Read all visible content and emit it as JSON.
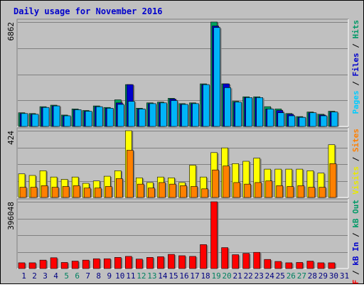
{
  "chart_data": {
    "type": "bar",
    "title": "Daily usage for November 2016",
    "categories": [
      "1",
      "2",
      "3",
      "4",
      "5",
      "6",
      "7",
      "8",
      "9",
      "10",
      "11",
      "12",
      "13",
      "14",
      "15",
      "16",
      "17",
      "18",
      "19",
      "20",
      "21",
      "22",
      "23",
      "24",
      "25",
      "26",
      "27",
      "28",
      "29",
      "30",
      "31"
    ],
    "weekend_days": [
      "5",
      "6",
      "12",
      "13",
      "19",
      "20",
      "26",
      "27"
    ],
    "panels": [
      {
        "id": "top",
        "ymax_label": "6862",
        "ymax": 6862,
        "legend": [
          {
            "text": "Pages",
            "color": "#00ccff"
          },
          {
            "text": " / ",
            "color": "#000000"
          },
          {
            "text": "Files",
            "color": "#0000cc"
          },
          {
            "text": " / ",
            "color": "#000000"
          },
          {
            "text": "Hits",
            "color": "#009966"
          }
        ],
        "series": [
          {
            "name": "Hits",
            "color": "#00a060",
            "values": [
              900,
              850,
              1300,
              1400,
              750,
              1150,
              1050,
              1350,
              1250,
              1750,
              2750,
              1200,
              1550,
              1600,
              1850,
              1500,
              1550,
              2800,
              6862,
              2800,
              1650,
              1950,
              1950,
              1300,
              1150,
              850,
              650,
              950,
              800,
              1000,
              0
            ]
          },
          {
            "name": "Files",
            "color": "#0000cc",
            "values": [
              850,
              800,
              1250,
              1350,
              700,
              1100,
              1000,
              1300,
              1200,
              1550,
              2750,
              1150,
              1500,
              1550,
              1800,
              1450,
              1500,
              2750,
              6600,
              2800,
              1600,
              1900,
              1900,
              1150,
              1050,
              800,
              600,
              900,
              750,
              950,
              0
            ]
          },
          {
            "name": "Pages",
            "color": "#00b4f8",
            "values": [
              850,
              800,
              1250,
              1350,
              700,
              1100,
              1000,
              1300,
              1200,
              1450,
              1650,
              1150,
              1500,
              1550,
              1700,
              1450,
              1500,
              2750,
              6500,
              2550,
              1600,
              1900,
              1900,
              1150,
              900,
              700,
              600,
              900,
              700,
              950,
              0
            ]
          }
        ]
      },
      {
        "id": "middle",
        "ymax_label": "424",
        "ymax": 424,
        "legend": [
          {
            "text": "Visits",
            "color": "#e8e800"
          },
          {
            "text": " / ",
            "color": "#000000"
          },
          {
            "text": "Sites",
            "color": "#ff8000"
          }
        ],
        "series": [
          {
            "name": "Visits",
            "color": "#ffff00",
            "values": [
              150,
              140,
              170,
              130,
              115,
              130,
              90,
              105,
              135,
              170,
              424,
              125,
              95,
              130,
              125,
              95,
              205,
              130,
              285,
              315,
              215,
              230,
              250,
              180,
              180,
              180,
              180,
              170,
              155,
              335,
              0
            ]
          },
          {
            "name": "Sites",
            "color": "#ff8000",
            "values": [
              65,
              65,
              75,
              65,
              70,
              75,
              60,
              60,
              70,
              120,
              300,
              85,
              60,
              95,
              85,
              75,
              70,
              55,
              175,
              200,
              95,
              85,
              95,
              105,
              75,
              70,
              75,
              65,
              65,
              215,
              0
            ]
          }
        ]
      },
      {
        "id": "bottom",
        "ymax_label": "396048",
        "ymax": 396048,
        "legend": [
          {
            "text": "kB F",
            "color": "#ff0000"
          },
          {
            "text": " / ",
            "color": "#000000"
          },
          {
            "text": "kB In",
            "color": "#0000cc"
          },
          {
            "text": " / ",
            "color": "#000000"
          },
          {
            "text": "kB Out",
            "color": "#009966"
          }
        ],
        "series": [
          {
            "name": "kB F",
            "color": "#ff0000",
            "values": [
              34000,
              34000,
              50000,
              64000,
              36000,
              44000,
              50000,
              58000,
              58000,
              66000,
              72000,
              56000,
              66000,
              70000,
              84000,
              76000,
              72000,
              142000,
              396048,
              124000,
              82000,
              90000,
              96000,
              54000,
              42000,
              34000,
              36000,
              44000,
              34000,
              34000,
              0
            ]
          },
          {
            "name": "kB In",
            "color": "#0000cc",
            "values": [
              0,
              0,
              0,
              0,
              0,
              0,
              0,
              0,
              0,
              0,
              0,
              0,
              0,
              0,
              0,
              0,
              0,
              0,
              0,
              0,
              0,
              0,
              0,
              0,
              0,
              0,
              0,
              0,
              0,
              0,
              0
            ]
          },
          {
            "name": "kB Out",
            "color": "#009966",
            "values": [
              0,
              0,
              0,
              0,
              0,
              0,
              0,
              0,
              0,
              0,
              0,
              0,
              0,
              0,
              0,
              0,
              0,
              0,
              0,
              0,
              0,
              0,
              0,
              0,
              0,
              0,
              0,
              0,
              0,
              0,
              0
            ]
          }
        ]
      }
    ],
    "grid": true,
    "colors": {
      "background": "#c0c0c0",
      "plot_background": "#c0c0c0",
      "title": "#0000cc",
      "weekday_label": "#000080",
      "weekend_label": "#008060",
      "gridline": "#808080"
    }
  }
}
